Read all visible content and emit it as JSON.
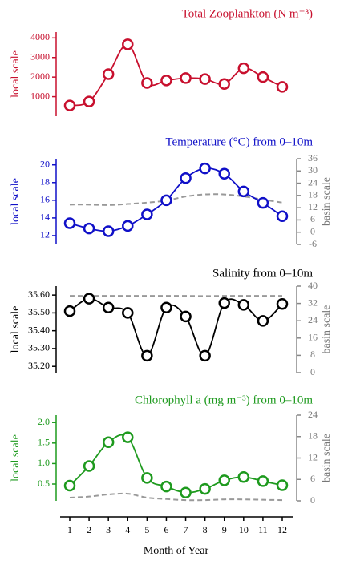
{
  "chart_data": [
    {
      "type": "line",
      "title": "Total Zooplankton (N m⁻³)",
      "ylabel": "local scale",
      "color": "#c8102e",
      "x": [
        1,
        2,
        3,
        4,
        5,
        6,
        7,
        8,
        9,
        10,
        11,
        12
      ],
      "xlim": [
        0.3,
        12.7
      ],
      "ylim": [
        0,
        4300
      ],
      "yticks": [
        1000,
        2000,
        3000,
        4000
      ],
      "series": [
        {
          "color": "#c8102e",
          "values": [
            550,
            750,
            2150,
            3670,
            1700,
            1830,
            1950,
            1900,
            1650,
            2450,
            2000,
            1500
          ]
        }
      ]
    },
    {
      "type": "line",
      "title": "Temperature (°C) from 0–10m",
      "ylabel": "local scale",
      "y2label": "basin scale",
      "color": "#1010c8",
      "x": [
        1,
        2,
        3,
        4,
        5,
        6,
        7,
        8,
        9,
        10,
        11,
        12
      ],
      "xlim": [
        0.3,
        12.7
      ],
      "ylim": [
        11.0,
        20.7
      ],
      "yticks": [
        12,
        14,
        16,
        18,
        20
      ],
      "y2lim": [
        -6,
        36
      ],
      "y2ticks": [
        -6,
        0,
        6,
        12,
        18,
        24,
        30,
        36
      ],
      "series": [
        {
          "color": "#1010c8",
          "values": [
            13.4,
            12.8,
            12.5,
            13.1,
            14.4,
            16.0,
            18.5,
            19.6,
            19.0,
            17.0,
            15.7,
            14.2
          ]
        },
        {
          "color": "#999999",
          "axis": "y2",
          "dashed": true,
          "values": [
            13.5,
            13.5,
            13.3,
            13.8,
            14.5,
            15.5,
            17.5,
            18.5,
            18.5,
            17.5,
            16,
            14.5
          ]
        }
      ]
    },
    {
      "type": "line",
      "title": "Salinity from 0–10m",
      "ylabel": "local scale",
      "y2label": "basin scale",
      "color": "#000000",
      "x": [
        1,
        2,
        3,
        4,
        5,
        6,
        7,
        8,
        9,
        10,
        11,
        12
      ],
      "xlim": [
        0.3,
        12.7
      ],
      "ylim": [
        35.165,
        35.65
      ],
      "yticks": [
        {
          "value": 35.2,
          "label": "35.20"
        },
        {
          "value": 35.3,
          "label": "35.30"
        },
        {
          "value": 35.4,
          "label": "35.40"
        },
        {
          "value": 35.5,
          "label": "35.50"
        },
        {
          "value": 35.6,
          "label": "35.60"
        }
      ],
      "y2lim": [
        0,
        40
      ],
      "y2ticks": [
        0,
        8,
        16,
        24,
        32,
        40
      ],
      "series": [
        {
          "color": "#000000",
          "values": [
            35.51,
            35.58,
            35.53,
            35.5,
            35.26,
            35.53,
            35.48,
            35.26,
            35.555,
            35.545,
            35.455,
            35.55
          ]
        },
        {
          "color": "#999999",
          "axis": "y2",
          "dashed": true,
          "values": [
            35.5,
            35.5,
            35.5,
            35.5,
            35.5,
            35.5,
            35.5,
            35.4,
            35.5,
            35.5,
            35.5,
            35.5
          ]
        }
      ]
    },
    {
      "type": "line",
      "title": "Chlorophyll a (mg m⁻³) from 0–10m",
      "ylabel": "local scale",
      "y2label": "basin scale",
      "color": "#1e9a1e",
      "x": [
        1,
        2,
        3,
        4,
        5,
        6,
        7,
        8,
        9,
        10,
        11,
        12
      ],
      "xlim": [
        0.3,
        12.7
      ],
      "xticks": [
        1,
        2,
        3,
        4,
        5,
        6,
        7,
        8,
        9,
        10,
        11,
        12
      ],
      "xlabel": "Month of Year",
      "ylim": [
        0.09,
        2.18
      ],
      "yticks": [
        0.5,
        {
          "value": 1.0,
          "label": "1.0"
        },
        1.5,
        {
          "value": 2.0,
          "label": "2.0"
        }
      ],
      "y2lim": [
        0,
        24
      ],
      "y2ticks": [
        0,
        6,
        12,
        18,
        24
      ],
      "series": [
        {
          "color": "#1e9a1e",
          "values": [
            0.46,
            0.94,
            1.52,
            1.64,
            0.65,
            0.44,
            0.29,
            0.38,
            0.59,
            0.67,
            0.57,
            0.47
          ]
        },
        {
          "color": "#999999",
          "axis": "y2",
          "dashed": true,
          "values": [
            0.9,
            1.2,
            1.8,
            2,
            0.9,
            0.5,
            0.2,
            0.2,
            0.4,
            0.4,
            0.3,
            0.2
          ]
        }
      ]
    }
  ]
}
